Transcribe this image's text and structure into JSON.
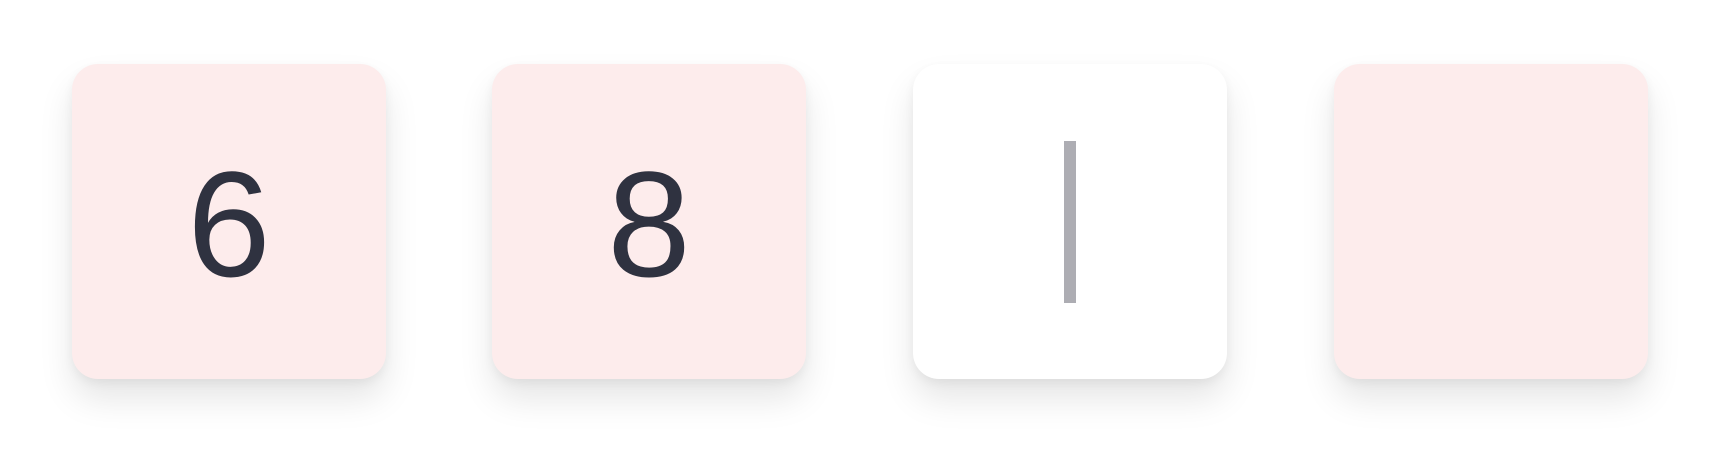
{
  "otp": {
    "digits": [
      "6",
      "8",
      "",
      ""
    ],
    "active_index": 2,
    "colors": {
      "filled_bg": "#fdecec",
      "active_bg": "#ffffff",
      "digit_color": "#2f3240",
      "caret_color": "#adadb3"
    }
  }
}
